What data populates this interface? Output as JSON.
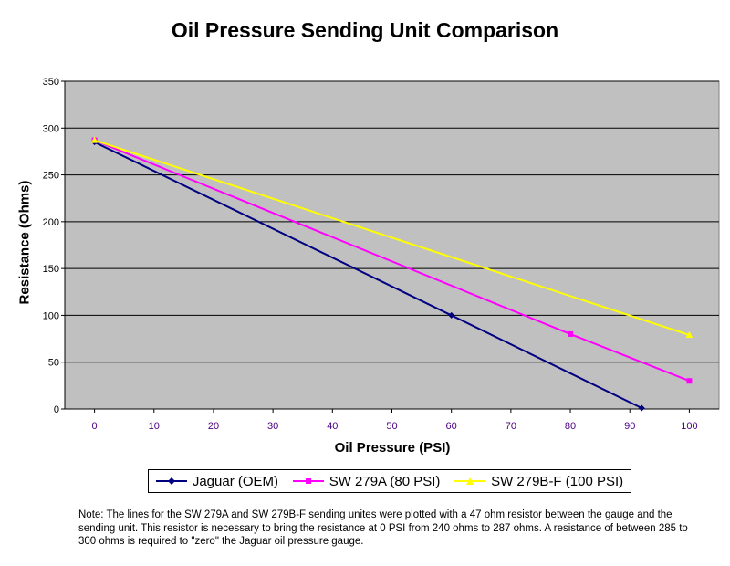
{
  "chart_data": {
    "type": "line",
    "title": "Oil Pressure Sending Unit Comparison",
    "xlabel": "Oil Pressure (PSI)",
    "ylabel": "Resistance (Ohms)",
    "xlim": [
      -5,
      105
    ],
    "ylim": [
      0,
      350
    ],
    "x_ticks": [
      "0",
      "10",
      "20",
      "30",
      "40",
      "50",
      "60",
      "70",
      "80",
      "90",
      "100"
    ],
    "y_ticks": [
      "0",
      "50",
      "100",
      "150",
      "200",
      "250",
      "300",
      "350"
    ],
    "grid": "horizontal",
    "legend_position": "bottom",
    "plot_background": "#c0c0c0",
    "series": [
      {
        "name": "Jaguar (OEM)",
        "color": "#000080",
        "marker": "diamond",
        "points": [
          [
            0,
            285
          ],
          [
            60,
            100
          ],
          [
            92,
            1
          ]
        ]
      },
      {
        "name": "SW 279A (80 PSI)",
        "color": "#ff00ff",
        "marker": "square",
        "points": [
          [
            0,
            287
          ],
          [
            80,
            80
          ],
          [
            100,
            30
          ]
        ]
      },
      {
        "name": "SW 279B-F (100 PSI)",
        "color": "#ffff00",
        "marker": "triangle",
        "points": [
          [
            0,
            287
          ],
          [
            100,
            79
          ]
        ]
      }
    ]
  },
  "note": "Note: The lines for the SW 279A and SW 279B-F sending unites were plotted with a 47 ohm resistor between the gauge and the sending unit.  This resistor is necessary to bring the resistance at 0 PSI from 240 ohms to 287 ohms.  A resistance of between 285 to 300 ohms is required to \"zero\" the Jaguar oil pressure gauge."
}
